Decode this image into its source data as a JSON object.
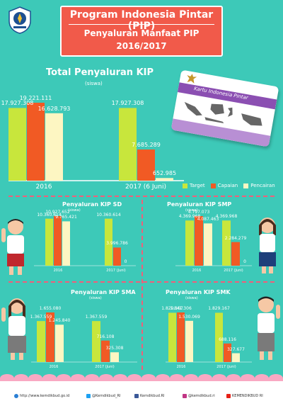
{
  "header": {
    "title": "Program Indonesia Pintar (PIP)",
    "subtitle": "Penyaluran Manfaat PIP",
    "year": "2016/2017"
  },
  "colors": {
    "background": "#3dc9b8",
    "target": "#c8e63c",
    "capaian": "#f15a24",
    "pencairan": "#fdf6c2",
    "accent": "#f15a4a"
  },
  "card": {
    "text": "Kartu Indonesia Pintar"
  },
  "legend": [
    {
      "label": "Target",
      "color": "#c8e63c"
    },
    {
      "label": "Capaian",
      "color": "#f15a24"
    },
    {
      "label": "Pencairan",
      "color": "#fdf6c2"
    }
  ],
  "chart_data": [
    {
      "type": "bar",
      "id": "kip",
      "title": "Total Penyaluran KIP",
      "subtitle": "(siswa)",
      "categories": [
        "2016",
        "2017 (6 Juni)"
      ],
      "series": [
        {
          "name": "Target",
          "values": [
            17927308,
            17927308
          ],
          "labels": [
            "17.927.308",
            "17.927.308"
          ]
        },
        {
          "name": "Capaian",
          "values": [
            19221111,
            7685289
          ],
          "labels": [
            "19.221.111",
            "7.685.289"
          ]
        },
        {
          "name": "Pencairan",
          "values": [
            16628793,
            652985
          ],
          "labels": [
            "16.628.793",
            "652.985"
          ]
        }
      ],
      "ylim": [
        0,
        19221111
      ]
    },
    {
      "type": "bar",
      "id": "sd",
      "title": "Penyaluran KIP SD",
      "subtitle": "(siswa)",
      "categories": [
        "2016",
        "2017 (Juni)"
      ],
      "series": [
        {
          "name": "Target",
          "values": [
            10360614,
            10360614
          ],
          "labels": [
            "10.360.614",
            "10.360.614"
          ]
        },
        {
          "name": "Capaian",
          "values": [
            10927652,
            3996786
          ],
          "labels": [
            "10.927.652",
            "3.996.786"
          ]
        },
        {
          "name": "Pencairan",
          "values": [
            9765421,
            0
          ],
          "labels": [
            "9.765.421",
            "0"
          ]
        }
      ],
      "ylim": [
        0,
        10927652
      ]
    },
    {
      "type": "bar",
      "id": "smp",
      "title": "Penyaluran KIP SMP",
      "subtitle": "(siswa)",
      "categories": [
        "2016",
        "2017 (Juni)"
      ],
      "series": [
        {
          "name": "Target",
          "values": [
            4369968,
            4369968
          ],
          "labels": [
            "4.369.968",
            "4.369.968"
          ]
        },
        {
          "name": "Capaian",
          "values": [
            4797073,
            2284279
          ],
          "labels": [
            "4.797.073",
            "2.284.279"
          ]
        },
        {
          "name": "Pencairan",
          "values": [
            4087463,
            0
          ],
          "labels": [
            "4.087.463",
            "0"
          ]
        }
      ],
      "ylim": [
        0,
        4797073
      ]
    },
    {
      "type": "bar",
      "id": "sma",
      "title": "Penyaluran KIP SMA",
      "subtitle": "(siswa)",
      "categories": [
        "2016",
        "2017 (Juni)"
      ],
      "series": [
        {
          "name": "Target",
          "values": [
            1367559,
            1367559
          ],
          "labels": [
            "1.367.559",
            "1.367.559"
          ]
        },
        {
          "name": "Capaian",
          "values": [
            1655080,
            716108
          ],
          "labels": [
            "1.655.080",
            "716.108"
          ]
        },
        {
          "name": "Pencairan",
          "values": [
            1245840,
            325308
          ],
          "labels": [
            "1.245.840",
            "325.308"
          ]
        }
      ],
      "ylim": [
        0,
        1655080
      ]
    },
    {
      "type": "bar",
      "id": "smk",
      "title": "Penyaluran KIP SMK",
      "subtitle": "(siswa)",
      "categories": [
        "2016",
        "2017 (Juni)"
      ],
      "series": [
        {
          "name": "Target",
          "values": [
            1829167,
            1829167
          ],
          "labels": [
            "1.829.167",
            "1.829.167"
          ]
        },
        {
          "name": "Capaian",
          "values": [
            1841306,
            688116
          ],
          "labels": [
            "1.841.306",
            "688.116"
          ]
        },
        {
          "name": "Pencairan",
          "values": [
            1530069,
            327677
          ],
          "labels": [
            "1.530.069",
            "327.677"
          ]
        }
      ],
      "ylim": [
        0,
        1841306
      ]
    }
  ],
  "footer": [
    {
      "icon": "globe-icon",
      "text": "http://www.kemdikbud.go.id"
    },
    {
      "icon": "twitter-icon",
      "text": "@Kemdikbud_RI"
    },
    {
      "icon": "facebook-icon",
      "text": "Kemdikbud.RI"
    },
    {
      "icon": "instagram-icon",
      "text": "@kemdikbud.ri"
    },
    {
      "icon": "youtube-icon",
      "text": "KEMENDIKBUD RI"
    }
  ]
}
